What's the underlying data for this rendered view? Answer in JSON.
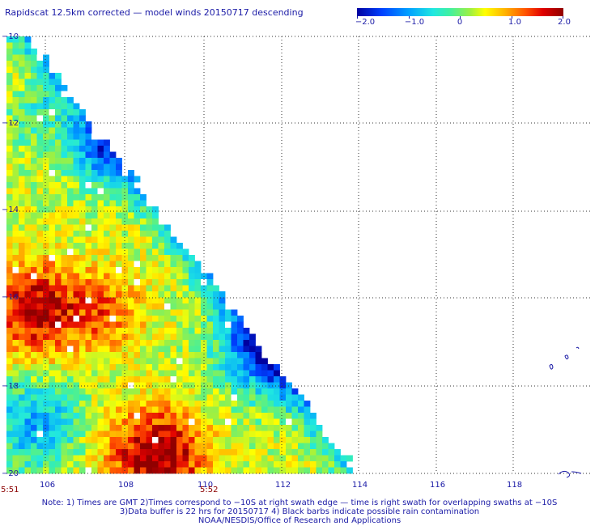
{
  "header": {
    "title": "Rapidscat 12.5km corrected — model winds 20150717 descending"
  },
  "colorbar": {
    "ticks": [
      "−2.0",
      "−1.0",
      "0",
      "1.0",
      "2.0"
    ],
    "range": [
      -2.0,
      2.0
    ]
  },
  "map": {
    "lat_labels": [
      "−10",
      "−12",
      "−14",
      "−16",
      "−18",
      "−20"
    ],
    "lon_labels": [
      "106",
      "108",
      "110",
      "112",
      "114",
      "116",
      "118"
    ],
    "lon_range": [
      105,
      119.5
    ],
    "lat_range": [
      -10,
      -20
    ]
  },
  "times": {
    "left": "5:51",
    "right": "5:52"
  },
  "footer": {
    "line1": "Note: 1) Times are GMT 2)Times correspond to −10S at right swath edge — time is right swath for overlapping swaths at −10S",
    "line2": "3)Data buffer is 22 hrs for 20150717 4) Black barbs indicate possible rain contamination",
    "line3": "NOAA/NESDIS/Office of Research and Applications"
  }
}
